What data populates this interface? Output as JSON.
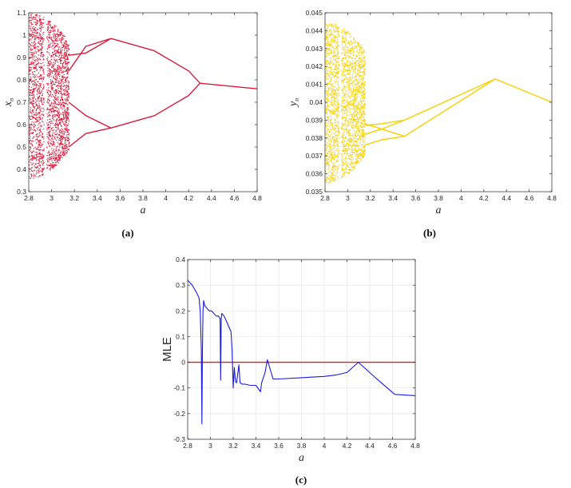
{
  "chart_data": [
    {
      "id": "a",
      "type": "scatter",
      "caption": "(a)",
      "xlabel": "a",
      "ylabel": "x",
      "ylabel_sub": "n",
      "xlim": [
        2.8,
        4.8
      ],
      "ylim": [
        0.3,
        1.1
      ],
      "x_ticks": [
        "2.8",
        "3",
        "3.2",
        "3.4",
        "3.6",
        "3.8",
        "4",
        "4.2",
        "4.4",
        "4.6",
        "4.8"
      ],
      "y_ticks": [
        "0.3",
        "0.4",
        "0.5",
        "0.6",
        "0.7",
        "0.8",
        "0.9",
        "1",
        "1.1"
      ],
      "color": "#d81b3c",
      "chaotic_band": {
        "x": [
          2.8,
          3.15
        ],
        "y": [
          0.36,
          1.1
        ],
        "gaps": [
          [
            2.93,
            2.955
          ]
        ]
      },
      "branches": [
        {
          "x": [
            3.15,
            3.3,
            3.52
          ],
          "y": [
            0.84,
            0.95,
            0.985
          ]
        },
        {
          "x": [
            3.15,
            3.3,
            3.52
          ],
          "y": [
            0.91,
            0.92,
            0.985
          ]
        },
        {
          "x": [
            3.52,
            3.9,
            4.2,
            4.3
          ],
          "y": [
            0.985,
            0.93,
            0.84,
            0.785
          ]
        },
        {
          "x": [
            3.15,
            3.3,
            3.52
          ],
          "y": [
            0.7,
            0.64,
            0.585
          ]
        },
        {
          "x": [
            3.15,
            3.3,
            3.52
          ],
          "y": [
            0.5,
            0.56,
            0.585
          ]
        },
        {
          "x": [
            3.52,
            3.9,
            4.2,
            4.3
          ],
          "y": [
            0.585,
            0.64,
            0.73,
            0.785
          ]
        },
        {
          "x": [
            4.3,
            4.8
          ],
          "y": [
            0.785,
            0.76
          ]
        }
      ]
    },
    {
      "id": "b",
      "type": "scatter",
      "caption": "(b)",
      "xlabel": "a",
      "ylabel": "y",
      "ylabel_sub": "n",
      "xlim": [
        2.8,
        4.8
      ],
      "ylim": [
        0.035,
        0.045
      ],
      "x_ticks": [
        "2.8",
        "3",
        "3.2",
        "3.4",
        "3.6",
        "3.8",
        "4",
        "4.2",
        "4.4",
        "4.6",
        "4.8"
      ],
      "y_ticks": [
        "0.035",
        "0.036",
        "0.037",
        "0.038",
        "0.039",
        "0.04",
        "0.041",
        "0.042",
        "0.043",
        "0.044",
        "0.045"
      ],
      "color": "#f7d000",
      "chaotic_band": {
        "x": [
          2.8,
          3.15
        ],
        "y": [
          0.0355,
          0.0445
        ],
        "gaps": [
          [
            2.92,
            2.94
          ]
        ]
      },
      "branches": [
        {
          "x": [
            3.15,
            3.3,
            3.5
          ],
          "y": [
            0.0388,
            0.0385,
            0.0381
          ]
        },
        {
          "x": [
            3.15,
            3.3,
            3.5
          ],
          "y": [
            0.0376,
            0.0379,
            0.0381
          ]
        },
        {
          "x": [
            3.15,
            3.3,
            3.5
          ],
          "y": [
            0.0387,
            0.0388,
            0.039
          ]
        },
        {
          "x": [
            3.15,
            3.3,
            3.5
          ],
          "y": [
            0.0382,
            0.0385,
            0.039
          ]
        },
        {
          "x": [
            3.5,
            4.3
          ],
          "y": [
            0.039,
            0.0413
          ]
        },
        {
          "x": [
            3.5,
            4.3
          ],
          "y": [
            0.0381,
            0.0413
          ]
        },
        {
          "x": [
            4.3,
            4.8
          ],
          "y": [
            0.0413,
            0.04
          ]
        }
      ]
    },
    {
      "id": "c",
      "type": "line",
      "caption": "(c)",
      "xlabel": "a",
      "ylabel": "MLE",
      "xlim": [
        2.8,
        4.8
      ],
      "ylim": [
        -0.3,
        0.4
      ],
      "x_ticks": [
        "2.8",
        "3",
        "3.2",
        "3.4",
        "3.6",
        "3.8",
        "4",
        "4.2",
        "4.4",
        "4.6",
        "4.8"
      ],
      "y_ticks": [
        "-0.3",
        "-0.2",
        "-0.1",
        "0",
        "0.1",
        "0.2",
        "0.3",
        "0.4"
      ],
      "grid": true,
      "zero_line": {
        "y": 0,
        "color": "#e01e1e"
      },
      "series": [
        {
          "color": "#1a1ae6",
          "x": [
            2.8,
            2.82,
            2.84,
            2.86,
            2.88,
            2.9,
            2.91,
            2.92,
            2.925,
            2.93,
            2.935,
            2.94,
            2.95,
            2.97,
            2.99,
            3.01,
            3.03,
            3.05,
            3.07,
            3.085,
            3.09,
            3.095,
            3.1,
            3.12,
            3.14,
            3.16,
            3.18,
            3.19,
            3.2,
            3.21,
            3.22,
            3.23,
            3.25,
            3.26,
            3.28,
            3.3,
            3.35,
            3.4,
            3.44,
            3.45,
            3.48,
            3.5,
            3.52,
            3.55,
            3.6,
            3.8,
            4.0,
            4.1,
            4.2,
            4.25,
            4.3,
            4.45,
            4.62,
            4.8
          ],
          "y": [
            0.32,
            0.31,
            0.3,
            0.285,
            0.27,
            0.25,
            0.2,
            0.05,
            -0.24,
            0.05,
            0.2,
            0.24,
            0.22,
            0.21,
            0.2,
            0.2,
            0.19,
            0.18,
            0.18,
            0.17,
            -0.07,
            0.17,
            0.19,
            0.18,
            0.16,
            0.14,
            0.12,
            0.05,
            -0.1,
            -0.02,
            -0.075,
            -0.08,
            -0.01,
            -0.08,
            -0.085,
            -0.085,
            -0.09,
            -0.09,
            -0.115,
            -0.08,
            -0.04,
            0.01,
            -0.02,
            -0.065,
            -0.065,
            -0.06,
            -0.055,
            -0.05,
            -0.04,
            -0.02,
            0.0,
            -0.06,
            -0.125,
            -0.13
          ]
        }
      ]
    }
  ]
}
